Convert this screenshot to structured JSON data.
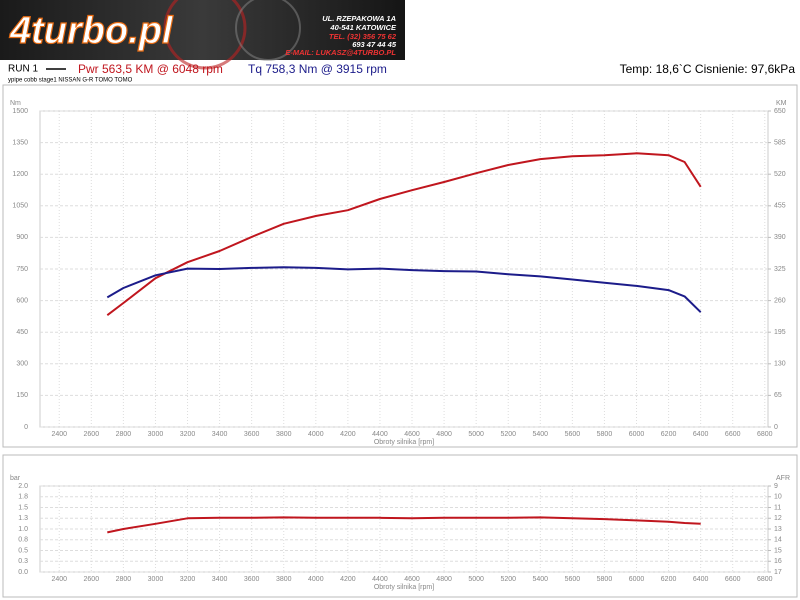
{
  "header": {
    "logo": "4turbo.pl",
    "address": [
      "UL. RZEPAKOWA 1A",
      "40-541 KATOWICE",
      "TEL. (32) 356 75 62",
      "693 47 44 45",
      "E-MAIL: LUKASZ@4TURBO.PL"
    ]
  },
  "info": {
    "run": "RUN 1",
    "power": "Pwr  563,5 KM @ 6048 rpm",
    "torque": "Tq 758,3 Nm @ 3915 rpm",
    "conditions": "Temp: 18,6`C Cisnienie: 97,6kPa",
    "subtitle": "ypipe cobb stage1 NISSAN G-R TOMO TOMO"
  },
  "chart_data": [
    {
      "type": "line",
      "ylabel": "Nm",
      "y2label": "KM",
      "xlabel": "Obroty silnika [rpm]",
      "x": [
        2700,
        2800,
        3000,
        3200,
        3400,
        3600,
        3800,
        4000,
        4200,
        4400,
        4600,
        4800,
        5000,
        5200,
        5400,
        5600,
        5800,
        6000,
        6200,
        6300,
        6400
      ],
      "series": [
        {
          "color": "#c0161e",
          "axis": "y2",
          "values": [
            230,
            255,
            306,
            339,
            362,
            391,
            418,
            434,
            446,
            469,
            487,
            504,
            522,
            539,
            551,
            557,
            559,
            563,
            559,
            545,
            494
          ]
        },
        {
          "color": "#1c1c8a",
          "values": [
            615,
            660,
            720,
            752,
            750,
            755,
            758,
            755,
            748,
            752,
            745,
            740,
            738,
            725,
            715,
            700,
            685,
            670,
            650,
            620,
            545
          ]
        }
      ],
      "xlim": [
        2280,
        6820
      ],
      "xticks": [
        2400,
        2600,
        2800,
        3000,
        3200,
        3400,
        3600,
        3800,
        4000,
        4200,
        4400,
        4600,
        4800,
        5000,
        5200,
        5400,
        5600,
        5800,
        6000,
        6200,
        6400,
        6600,
        6800
      ],
      "ylim": [
        0,
        1500
      ],
      "yticks": [
        0,
        150,
        300,
        450,
        600,
        750,
        900,
        1050,
        1200,
        1350,
        1500
      ],
      "y2lim": [
        0,
        650
      ],
      "y2ticks": [
        0,
        65,
        130,
        195,
        260,
        325,
        390,
        455,
        520,
        585,
        650
      ],
      "grid": true
    },
    {
      "type": "line",
      "ylabel": "bar",
      "y2label": "AFR",
      "xlabel": "Obroty silnika [rpm]",
      "x": [
        2700,
        2800,
        3000,
        3200,
        3400,
        3600,
        3800,
        4000,
        4200,
        4400,
        4600,
        4800,
        5000,
        5200,
        5400,
        5600,
        5800,
        6000,
        6200,
        6300,
        6400
      ],
      "series": [
        {
          "color": "#c0161e",
          "values": [
            0.92,
            1.0,
            1.12,
            1.25,
            1.26,
            1.26,
            1.27,
            1.26,
            1.26,
            1.26,
            1.25,
            1.26,
            1.26,
            1.26,
            1.27,
            1.25,
            1.23,
            1.2,
            1.17,
            1.14,
            1.12
          ]
        }
      ],
      "xlim": [
        2280,
        6820
      ],
      "xticks": [
        2400,
        2600,
        2800,
        3000,
        3200,
        3400,
        3600,
        3800,
        4000,
        4200,
        4400,
        4600,
        4800,
        5000,
        5200,
        5400,
        5600,
        5800,
        6000,
        6200,
        6400,
        6600,
        6800
      ],
      "ylim": [
        0,
        2
      ],
      "yticks": [
        {
          "value": 0,
          "label": "0.0"
        },
        {
          "value": 0.25,
          "label": "0.3"
        },
        {
          "value": 0.5,
          "label": "0.5"
        },
        {
          "value": 0.75,
          "label": "0.8"
        },
        {
          "value": 1,
          "label": "1.0"
        },
        {
          "value": 1.25,
          "label": "1.3"
        },
        {
          "value": 1.5,
          "label": "1.5"
        },
        {
          "value": 1.75,
          "label": "1.8"
        },
        {
          "value": 2,
          "label": "2.0"
        }
      ],
      "y2lim": [
        17,
        9
      ],
      "y2ticks": [
        9,
        10,
        11,
        12,
        13,
        14,
        15,
        16,
        17
      ],
      "grid": true
    }
  ]
}
